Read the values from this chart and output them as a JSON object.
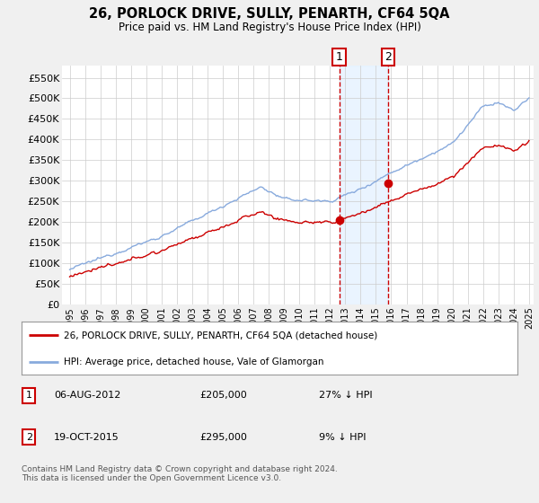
{
  "title": "26, PORLOCK DRIVE, SULLY, PENARTH, CF64 5QA",
  "subtitle": "Price paid vs. HM Land Registry's House Price Index (HPI)",
  "ylabel_ticks": [
    "£0",
    "£50K",
    "£100K",
    "£150K",
    "£200K",
    "£250K",
    "£300K",
    "£350K",
    "£400K",
    "£450K",
    "£500K",
    "£550K"
  ],
  "ytick_values": [
    0,
    50000,
    100000,
    150000,
    200000,
    250000,
    300000,
    350000,
    400000,
    450000,
    500000,
    550000
  ],
  "ylim": [
    0,
    580000
  ],
  "sale1_date_num": 2012.6,
  "sale1_price": 205000,
  "sale1_label": "1",
  "sale1_date_str": "06-AUG-2012",
  "sale1_pct": "27% ↓ HPI",
  "sale2_date_num": 2015.8,
  "sale2_price": 295000,
  "sale2_label": "2",
  "sale2_date_str": "19-OCT-2015",
  "sale2_pct": "9% ↓ HPI",
  "legend_line1": "26, PORLOCK DRIVE, SULLY, PENARTH, CF64 5QA (detached house)",
  "legend_line2": "HPI: Average price, detached house, Vale of Glamorgan",
  "footer": "Contains HM Land Registry data © Crown copyright and database right 2024.\nThis data is licensed under the Open Government Licence v3.0.",
  "line_color_red": "#cc0000",
  "line_color_blue": "#88aadd",
  "background_color": "#f0f0f0",
  "plot_bg_color": "#ffffff",
  "grid_color": "#cccccc",
  "shade_color": "#ddeeff",
  "xlabel_start": 1995,
  "xlabel_end": 2025,
  "fig_width": 6.0,
  "fig_height": 5.6
}
